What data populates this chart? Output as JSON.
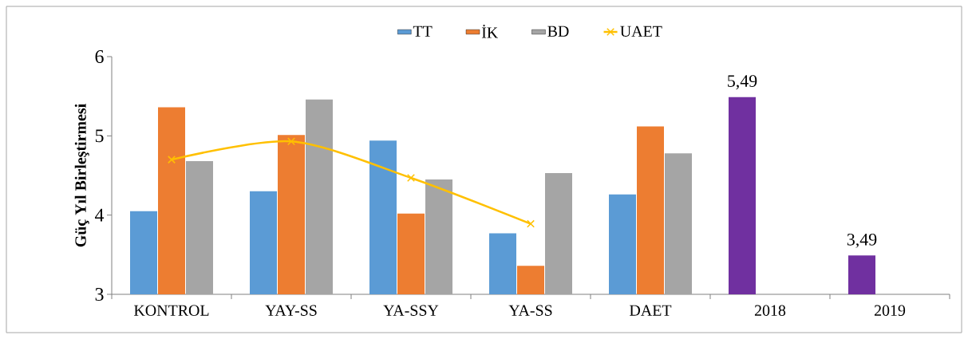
{
  "chart_data": {
    "type": "bar",
    "ylabel": "Güç Yıl Birleştirmesi",
    "categories": [
      "KONTROL",
      "YAY-SS",
      "YA-SSY",
      "YA-SS",
      "DAET",
      "2018",
      "2019"
    ],
    "series": [
      {
        "name": "TT",
        "color": "#5b9bd5",
        "values": [
          4.05,
          4.3,
          4.94,
          3.77,
          4.26,
          null,
          null
        ]
      },
      {
        "name": "İK",
        "color": "#ed7d31",
        "values": [
          5.36,
          5.01,
          4.02,
          3.36,
          5.12,
          null,
          null
        ]
      },
      {
        "name": "BD",
        "color": "#a5a5a5",
        "values": [
          4.68,
          5.46,
          4.45,
          4.53,
          4.78,
          null,
          null
        ]
      },
      {
        "color": "#7030a0",
        "values": [
          null,
          null,
          null,
          null,
          null,
          5.49,
          3.49
        ],
        "value_labels": [
          null,
          null,
          null,
          null,
          null,
          "5,49",
          "3,49"
        ]
      },
      {
        "name": "UAET",
        "type": "line",
        "color": "#ffc000",
        "marker": "cross",
        "values": [
          4.7,
          4.93,
          4.47,
          3.89,
          null,
          null,
          null
        ]
      }
    ],
    "ylim": [
      3,
      6
    ],
    "yticks": [
      3,
      4,
      5,
      6
    ],
    "legend": "top"
  }
}
